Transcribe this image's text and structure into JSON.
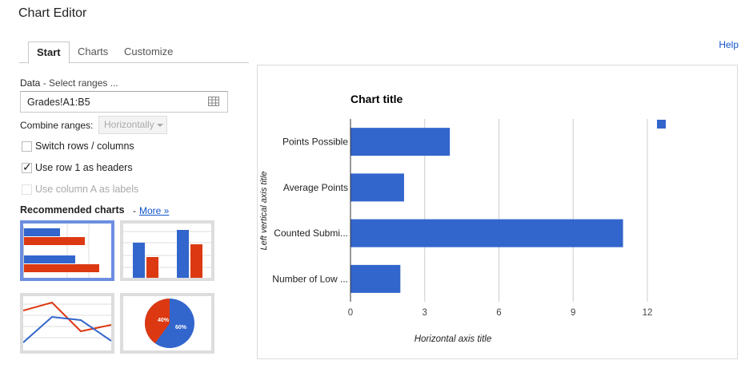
{
  "app": {
    "title": "Chart Editor",
    "help": "Help"
  },
  "tabs": [
    {
      "label": "Start"
    },
    {
      "label": "Charts"
    },
    {
      "label": "Customize"
    }
  ],
  "data_section": {
    "label": "Data",
    "select_ranges": " - Select ranges ...",
    "range_value": "Grades!A1:B5",
    "combine_label": "Combine ranges:",
    "combine_value": "Horizontally",
    "switch_rows": "Switch rows / columns",
    "use_row1": "Use row 1 as headers",
    "use_row1_checked": true,
    "use_colA": "Use column A as labels"
  },
  "recommended": {
    "title": "Recommended charts",
    "dash": "-",
    "more": "More »",
    "pie_labels": [
      "40%",
      "60%"
    ]
  },
  "colors": {
    "blue": "#3366cc",
    "red": "#dc3912",
    "grid": "#cccccc"
  },
  "chart_data": {
    "type": "bar",
    "orientation": "horizontal",
    "title": "Chart title",
    "xlabel": "Horizontal axis title",
    "ylabel": "Left vertical axis title",
    "categories": [
      "Points Possible",
      "Average Points",
      "Counted Submi...",
      "Number of Low ..."
    ],
    "values": [
      4,
      2.15,
      11,
      2
    ],
    "xlim": [
      0,
      12
    ],
    "xticks": [
      0,
      3,
      6,
      9,
      12
    ],
    "grid": true,
    "legend": "right",
    "series_color": "#3366cc"
  }
}
